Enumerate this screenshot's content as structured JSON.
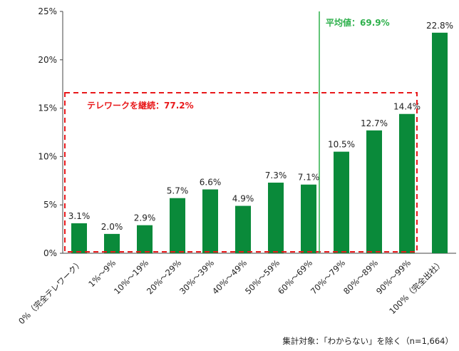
{
  "chart_data": {
    "type": "bar",
    "categories": [
      "0%（完全テレワーク）",
      "1%～9%",
      "10%～19%",
      "20%～29%",
      "30%～39%",
      "40%～49%",
      "50%～59%",
      "60%～69%",
      "70%～79%",
      "80%～89%",
      "90%～99%",
      "100%（完全出社）"
    ],
    "values": [
      3.1,
      2.0,
      2.9,
      5.7,
      6.6,
      4.9,
      7.3,
      7.1,
      10.5,
      12.7,
      14.4,
      22.8
    ],
    "data_labels": [
      "3.1%",
      "2.0%",
      "2.9%",
      "5.7%",
      "6.6%",
      "4.9%",
      "7.3%",
      "7.1%",
      "10.5%",
      "12.7%",
      "14.4%",
      "22.8%"
    ],
    "yticks": [
      "0%",
      "5%",
      "10%",
      "15%",
      "20%",
      "25%"
    ],
    "ylim": [
      0,
      25
    ],
    "bar_color": "#0a8a3a",
    "grid": false,
    "annotations": {
      "mean_line_label": "平均値：69.9%",
      "mean_line_color": "#2db04b",
      "telework_box_label": "テレワークを継続：77.2%",
      "telework_box_color": "#e8191b"
    },
    "note": "集計対象：「わからない」を除く（n=1,664）"
  }
}
